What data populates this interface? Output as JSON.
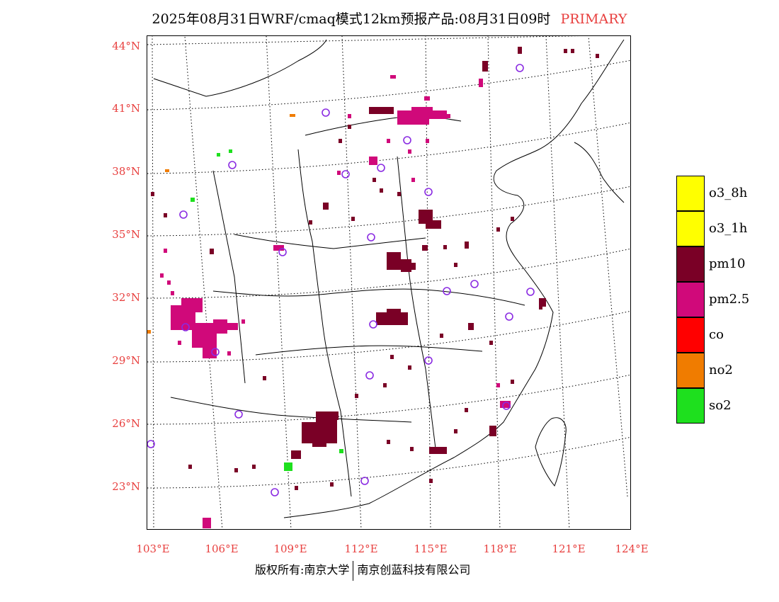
{
  "title": {
    "main": "2025年08月31日WRF/cmaq模式12km预报产品:08月31日09时",
    "tag": "PRIMARY"
  },
  "colors": {
    "label_red": "#e8403f",
    "pm10": "#7a0026",
    "pm25": "#d0097a",
    "no2": "#f07c00",
    "so2": "#1ee01e",
    "station": "#8a2be2"
  },
  "lat_labels": [
    "44°N",
    "41°N",
    "38°N",
    "35°N",
    "32°N",
    "29°N",
    "26°N",
    "23°N"
  ],
  "lon_labels": [
    "103°E",
    "106°E",
    "109°E",
    "112°E",
    "115°E",
    "118°E",
    "121°E",
    "124°E"
  ],
  "legend": [
    {
      "label": "o3_8h",
      "color": "#ffff00"
    },
    {
      "label": "o3_1h",
      "color": "#ffff00"
    },
    {
      "label": "pm10",
      "color": "#7a0026"
    },
    {
      "label": "pm2.5",
      "color": "#d0097a"
    },
    {
      "label": "co",
      "color": "#ff0000"
    },
    {
      "label": "no2",
      "color": "#f07c00"
    },
    {
      "label": "so2",
      "color": "#1ee01e"
    }
  ],
  "footer": {
    "left": "版权所有:南京大学",
    "right": "南京创蓝科技有限公司"
  }
}
